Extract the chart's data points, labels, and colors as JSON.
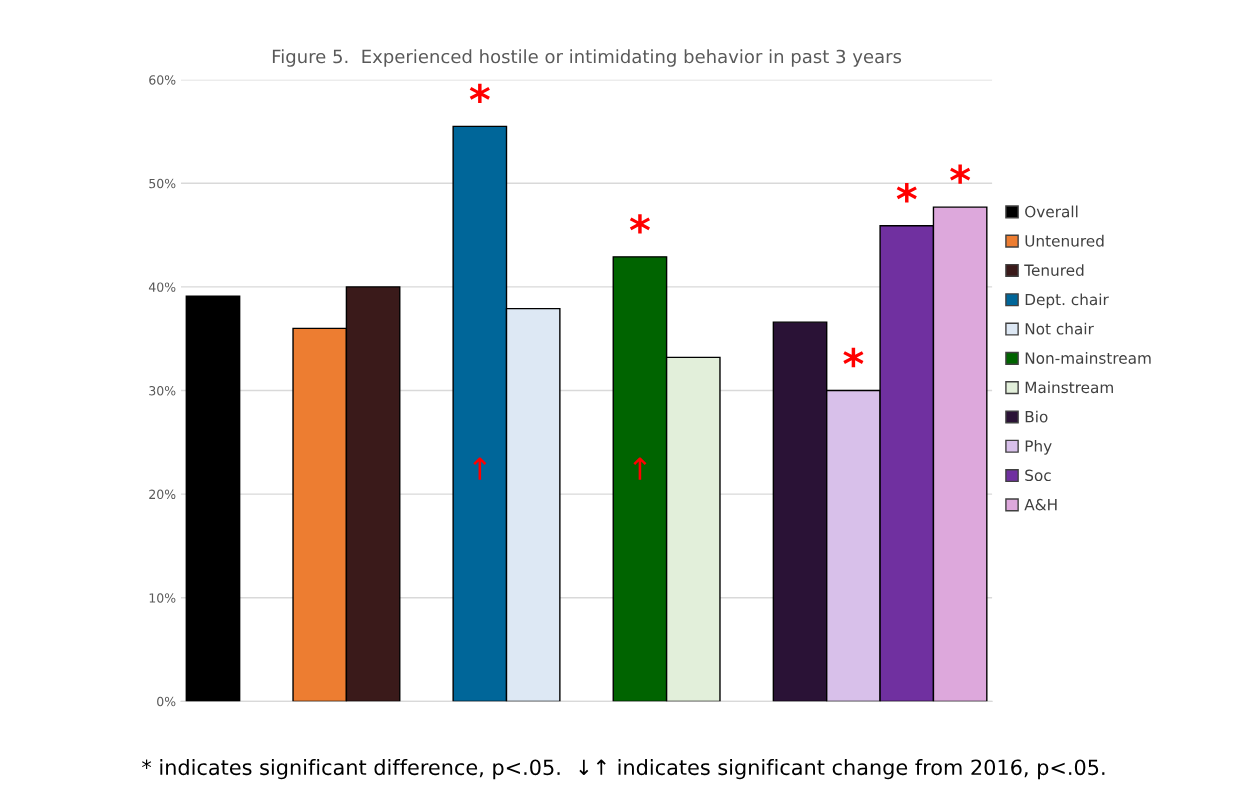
{
  "chart_data": {
    "type": "bar",
    "title": "Figure 5.  Experienced hostile or intimidating behavior in past 3 years",
    "categories": [
      null,
      null,
      null,
      null,
      null,
      null,
      null,
      null,
      null,
      null,
      null,
      null,
      null,
      null,
      null
    ],
    "series": [
      {
        "name": "Overall",
        "color": "#000000",
        "values": [
          39.1,
          null,
          null,
          null,
          null,
          null,
          null,
          null,
          null,
          null,
          null,
          null,
          null,
          null,
          null
        ]
      },
      {
        "name": "Untenured",
        "color": "#ed7d31",
        "values": [
          null,
          null,
          36.0,
          null,
          null,
          null,
          null,
          null,
          null,
          null,
          null,
          null,
          null,
          null,
          null
        ]
      },
      {
        "name": "Tenured",
        "color": "#3a1a1a",
        "values": [
          null,
          null,
          null,
          40.0,
          null,
          null,
          null,
          null,
          null,
          null,
          null,
          null,
          null,
          null,
          null
        ]
      },
      {
        "name": "Dept. chair",
        "color": "#006699",
        "values": [
          null,
          null,
          null,
          null,
          null,
          55.5,
          null,
          null,
          null,
          null,
          null,
          null,
          null,
          null,
          null
        ],
        "value_labels": [
          null,
          null,
          null,
          null,
          null,
          "*",
          null,
          null,
          null,
          null,
          null,
          null,
          null,
          null,
          null
        ]
      },
      {
        "name": "Not chair",
        "color": "#dde8f4",
        "values": [
          null,
          null,
          null,
          null,
          null,
          null,
          37.9,
          null,
          null,
          null,
          null,
          null,
          null,
          null,
          null
        ]
      },
      {
        "name": "Non-mainstream",
        "color": "#006400",
        "values": [
          null,
          null,
          null,
          null,
          null,
          null,
          null,
          null,
          42.9,
          null,
          null,
          null,
          null,
          null,
          null
        ],
        "value_labels": [
          null,
          null,
          null,
          null,
          null,
          null,
          null,
          null,
          "*",
          null,
          null,
          null,
          null,
          null,
          null
        ]
      },
      {
        "name": "Mainstream",
        "color": "#e2efda",
        "values": [
          null,
          null,
          null,
          null,
          null,
          null,
          null,
          null,
          null,
          33.2,
          null,
          null,
          null,
          null,
          null
        ]
      },
      {
        "name": "Bio",
        "color": "#2a1236",
        "values": [
          null,
          null,
          null,
          null,
          null,
          null,
          null,
          null,
          null,
          null,
          null,
          36.6,
          null,
          null,
          null
        ]
      },
      {
        "name": "Phy",
        "color": "#d8c0ea",
        "values": [
          null,
          null,
          null,
          null,
          null,
          null,
          null,
          null,
          null,
          null,
          null,
          null,
          30.0,
          null,
          null
        ],
        "value_labels": [
          null,
          null,
          null,
          null,
          null,
          null,
          null,
          null,
          null,
          null,
          null,
          null,
          "*",
          null,
          null
        ]
      },
      {
        "name": "Soc",
        "color": "#7030a0",
        "values": [
          null,
          null,
          null,
          null,
          null,
          null,
          null,
          null,
          null,
          null,
          null,
          null,
          null,
          45.9,
          null
        ],
        "value_labels": [
          null,
          null,
          null,
          null,
          null,
          null,
          null,
          null,
          null,
          null,
          null,
          null,
          null,
          "*",
          null
        ]
      },
      {
        "name": "A&H",
        "color": "#dda8dc",
        "values": [
          null,
          null,
          null,
          null,
          null,
          null,
          null,
          null,
          null,
          null,
          null,
          null,
          null,
          null,
          47.7
        ],
        "value_labels": [
          null,
          null,
          null,
          null,
          null,
          null,
          null,
          null,
          null,
          null,
          null,
          null,
          null,
          null,
          "*"
        ]
      }
    ],
    "ylim": [
      0,
      60
    ],
    "yticks": [
      {
        "value": 0,
        "label": "0%"
      },
      {
        "value": 10,
        "label": "10%"
      },
      {
        "value": 20,
        "label": "20%"
      },
      {
        "value": 30,
        "label": "30%"
      },
      {
        "value": 40,
        "label": "40%"
      },
      {
        "value": 50,
        "label": "50%"
      },
      {
        "value": 60,
        "label": "60%"
      }
    ],
    "grid": "y",
    "legend": "right",
    "tick_labels": "y",
    "annotations": [
      "↑",
      "↑",
      "* indicates significant difference, p<.05.  ↓↑ indicates significant change from 2016, p<.05."
    ]
  }
}
